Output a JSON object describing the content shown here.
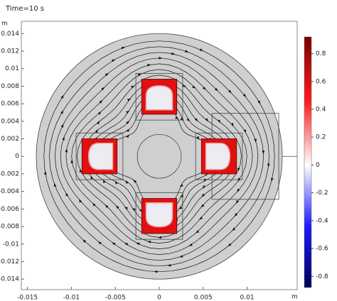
{
  "chart_data": {
    "type": "surface",
    "title": "Time=10 s",
    "x_unit": "m",
    "y_unit": "m",
    "xlim": [
      -0.0157,
      0.0157
    ],
    "ylim": [
      -0.0152,
      0.0154
    ],
    "xticks": [
      -0.015,
      -0.01,
      -0.005,
      0,
      0.005,
      0.01
    ],
    "yticks": [
      0.014,
      0.012,
      0.01,
      0.008,
      0.006,
      0.004,
      0.002,
      0,
      -0.002,
      -0.004,
      -0.006,
      -0.008,
      -0.01,
      -0.012,
      -0.014
    ],
    "colorbar": {
      "clim": [
        -0.88,
        0.92
      ],
      "ticks": [
        0.8,
        0.6,
        0.4,
        0.2,
        0,
        -0.2,
        -0.4,
        -0.6,
        -0.8
      ],
      "colors": [
        "#7a0000",
        "#ff1a1a",
        "#ffffff",
        "#1a1aff",
        "#00005a"
      ]
    },
    "coil_color": "#e01010",
    "domain_color": "#cfcfcf"
  }
}
